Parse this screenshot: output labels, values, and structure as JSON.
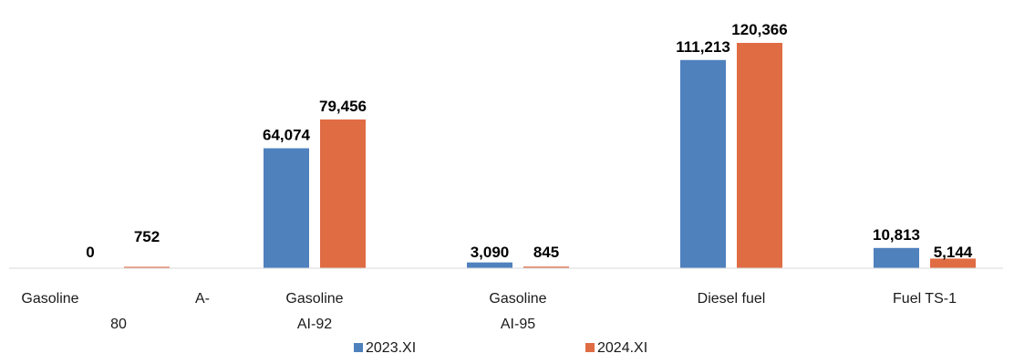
{
  "chart_data": {
    "type": "bar",
    "title": "",
    "xlabel": "",
    "ylabel": "",
    "categories": [
      [
        "Gasoline",
        "A-",
        "80"
      ],
      [
        "Gasoline",
        "AI-92"
      ],
      [
        "Gasoline",
        "AI-95"
      ],
      [
        "Diesel fuel"
      ],
      [
        "Fuel TS-1"
      ]
    ],
    "series": [
      {
        "name": "2023.XI",
        "color": "#4f81bd",
        "values": [
          0,
          64074,
          3090,
          111213,
          10813
        ],
        "labels": [
          "0",
          "64,074",
          "3,090",
          "111,213",
          "10,813"
        ]
      },
      {
        "name": "2024.XI",
        "color": "#e06c44",
        "values": [
          752,
          79456,
          845,
          120366,
          5144
        ],
        "labels": [
          "752",
          "79,456",
          "845",
          "120,366",
          "5,144"
        ]
      }
    ],
    "ylim": [
      0,
      120366
    ],
    "grid": false,
    "legend": "bottom-center",
    "axis_color": "#d9d9d9"
  }
}
